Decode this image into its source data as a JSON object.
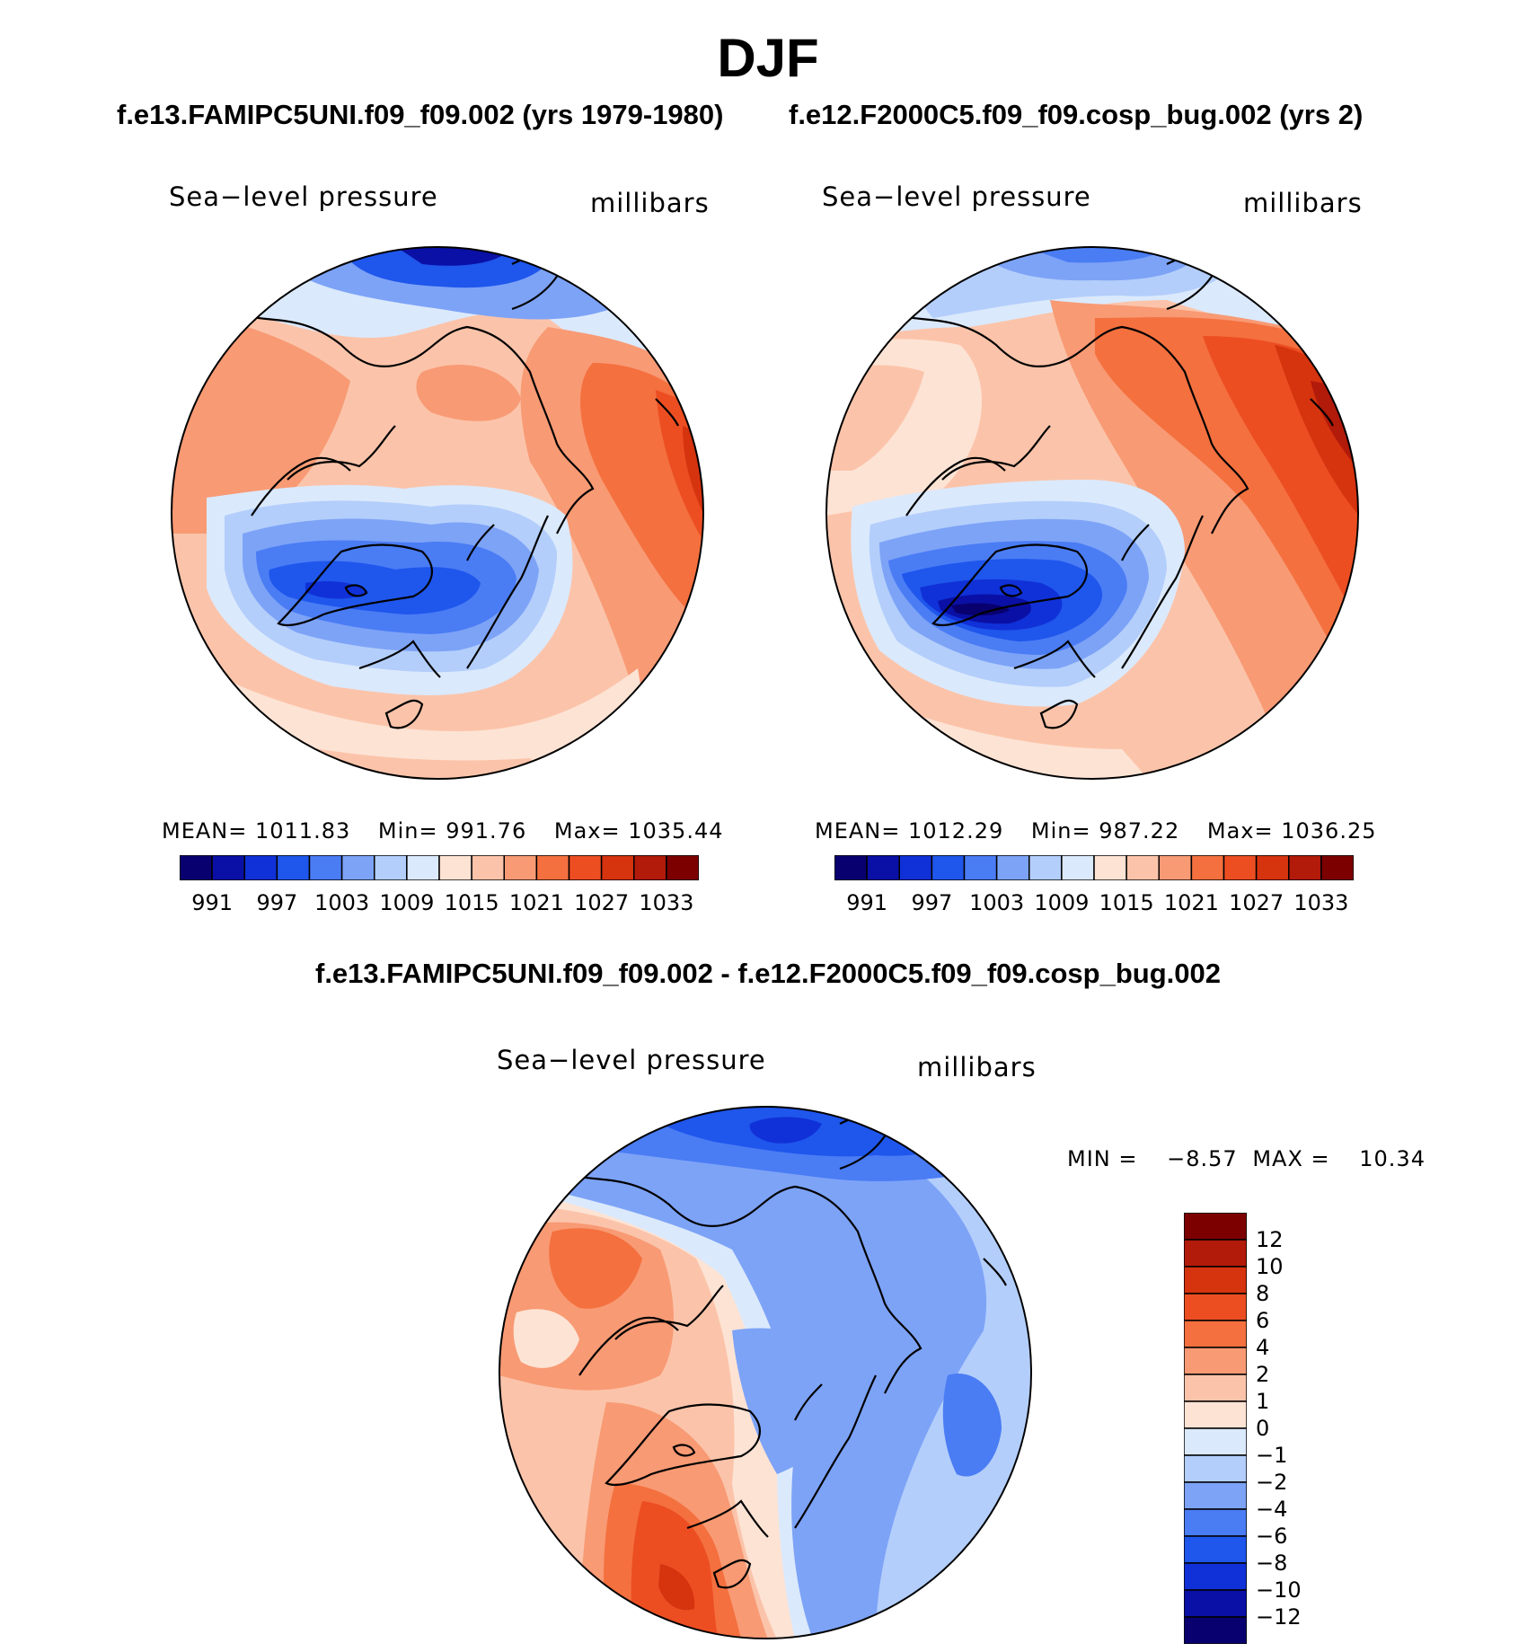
{
  "title": "DJF",
  "case_titles": {
    "left": "f.e13.FAMIPC5UNI.f09_f09.002 (yrs 1979-1980)",
    "right": "f.e12.F2000C5.f09_f09.cosp_bug.002 (yrs 2)"
  },
  "diff_title": "f.e13.FAMIPC5UNI.f09_f09.002 - f.e12.F2000C5.f09_f09.cosp_bug.002",
  "variable_label": "Sea−level pressure",
  "units_label": "millibars",
  "panels": [
    {
      "mean_label": "MEAN=",
      "mean": "1011.83",
      "min_label": "Min=",
      "min": "991.76",
      "max_label": "Max=",
      "max": "1035.44"
    },
    {
      "mean_label": "MEAN=",
      "mean": "1012.29",
      "min_label": "Min=",
      "min": "987.22",
      "max_label": "Max=",
      "max": "1036.25"
    }
  ],
  "diff_stats": {
    "min_label": "MIN =",
    "min": "−8.57",
    "max_label": "MAX =",
    "max": "10.34"
  },
  "abs_colorbar": {
    "colors": [
      "#08006f",
      "#0a10a5",
      "#1031d8",
      "#1f56ec",
      "#4a7cf4",
      "#7da3f7",
      "#b3cefb",
      "#dbe9fc",
      "#fde3d4",
      "#fbc4aa",
      "#f89a74",
      "#f4703f",
      "#ec4e22",
      "#d6330f",
      "#b21a0a",
      "#7d0000"
    ],
    "tick_labels": [
      "991",
      "997",
      "1003",
      "1009",
      "1015",
      "1021",
      "1027",
      "1033"
    ]
  },
  "diff_colorbar": {
    "colors": [
      "#08006f",
      "#0a10a5",
      "#1031d8",
      "#1f56ec",
      "#4a7cf4",
      "#7da3f7",
      "#b3cefb",
      "#dbe9fc",
      "#fde3d4",
      "#fbc4aa",
      "#f89a74",
      "#f4703f",
      "#ec4e22",
      "#d6330f",
      "#b21a0a",
      "#7d0000"
    ],
    "tick_labels": [
      "12",
      "10",
      "8",
      "6",
      "4",
      "2",
      "1",
      "0",
      "−1",
      "−2",
      "−4",
      "−6",
      "−8",
      "−10",
      "−12"
    ]
  },
  "chart_data": [
    {
      "type": "heatmap",
      "projection": "north-polar-stereographic",
      "title": "Sea-level pressure",
      "units": "millibars",
      "case": "f.e13.FAMIPC5UNI.f09_f09.002 (yrs 1979-1980)",
      "mean": 1011.83,
      "min": 991.76,
      "max": 1035.44,
      "contour_levels": [
        991,
        994,
        997,
        1000,
        1003,
        1006,
        1009,
        1012,
        1015,
        1018,
        1021,
        1024,
        1027,
        1030,
        1033
      ]
    },
    {
      "type": "heatmap",
      "projection": "north-polar-stereographic",
      "title": "Sea-level pressure",
      "units": "millibars",
      "case": "f.e12.F2000C5.f09_f09.cosp_bug.002 (yrs 2)",
      "mean": 1012.29,
      "min": 987.22,
      "max": 1036.25,
      "contour_levels": [
        991,
        994,
        997,
        1000,
        1003,
        1006,
        1009,
        1012,
        1015,
        1018,
        1021,
        1024,
        1027,
        1030,
        1033
      ]
    },
    {
      "type": "heatmap",
      "projection": "north-polar-stereographic",
      "title": "Sea-level pressure (difference)",
      "units": "millibars",
      "min": -8.57,
      "max": 10.34,
      "contour_levels": [
        -12,
        -10,
        -8,
        -6,
        -4,
        -2,
        -1,
        0,
        1,
        2,
        4,
        6,
        8,
        10,
        12
      ]
    }
  ]
}
